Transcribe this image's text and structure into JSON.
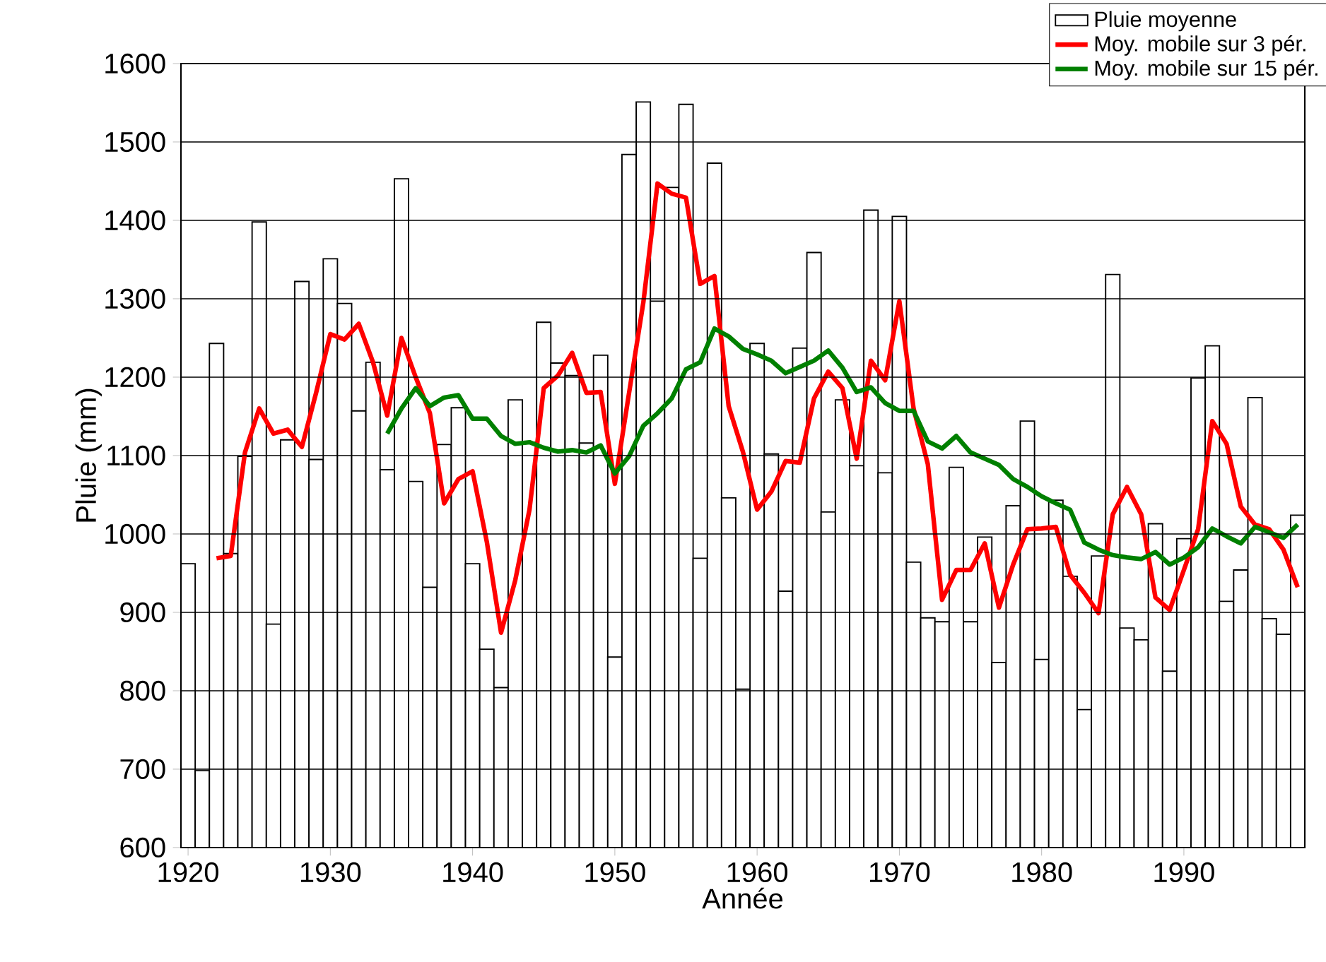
{
  "chart_data": {
    "type": "bar",
    "xlabel": "Année",
    "ylabel": "Pluie (mm)",
    "x": [
      1920,
      1921,
      1922,
      1923,
      1924,
      1925,
      1926,
      1927,
      1928,
      1929,
      1930,
      1931,
      1932,
      1933,
      1934,
      1935,
      1936,
      1937,
      1938,
      1939,
      1940,
      1941,
      1942,
      1943,
      1944,
      1945,
      1946,
      1947,
      1948,
      1949,
      1950,
      1951,
      1952,
      1953,
      1954,
      1955,
      1956,
      1957,
      1958,
      1959,
      1960,
      1961,
      1962,
      1963,
      1964,
      1965,
      1966,
      1967,
      1968,
      1969,
      1970,
      1971,
      1972,
      1973,
      1974,
      1975,
      1976,
      1977,
      1978,
      1979,
      1980,
      1981,
      1982,
      1983,
      1984,
      1985,
      1986,
      1987,
      1988,
      1989,
      1990,
      1991,
      1992,
      1993,
      1994,
      1995,
      1996,
      1997,
      1998
    ],
    "series": [
      {
        "name": "Pluie moyenne",
        "color": "#ffffff",
        "values": [
          962,
          698,
          1243,
          975,
          1099,
          1398,
          885,
          1120,
          1322,
          1095,
          1351,
          1294,
          1157,
          1219,
          1082,
          1453,
          1067,
          932,
          1114,
          1161,
          962,
          853,
          804,
          1171,
          1117,
          1270,
          1218,
          1202,
          1116,
          1228,
          843,
          1484,
          1551,
          1297,
          1442,
          1548,
          969,
          1473,
          1046,
          802,
          1243,
          1102,
          927,
          1237,
          1359,
          1028,
          1171,
          1087,
          1413,
          1078,
          1405,
          964,
          893,
          888,
          1085,
          888,
          996,
          836,
          1036,
          1144,
          840,
          1043,
          946,
          776,
          972,
          1331,
          880,
          865,
          1013,
          825,
          994,
          1199,
          1240,
          914,
          954,
          1174,
          892,
          872,
          1024
        ]
      },
      {
        "name": "Moy. mobile sur 3 pér.",
        "type": "line",
        "color": "#ff0000",
        "values": [
          null,
          null,
          969,
          972,
          1104,
          1160,
          1128,
          1133,
          1111,
          1180,
          1255,
          1248,
          1268,
          1219,
          1151,
          1250,
          1200,
          1154,
          1039,
          1070,
          1080,
          990,
          874,
          941,
          1031,
          1186,
          1202,
          1231,
          1180,
          1181,
          1064,
          1180,
          1295,
          1447,
          1434,
          1429,
          1319,
          1329,
          1163,
          1105,
          1031,
          1054,
          1093,
          1091,
          1173,
          1207,
          1186,
          1096,
          1221,
          1196,
          1297,
          1160,
          1089,
          916,
          954,
          954,
          988,
          906,
          961,
          1006,
          1007,
          1009,
          948,
          925,
          899,
          1025,
          1060,
          1025,
          919,
          903,
          954,
          1006,
          1144,
          1115,
          1035,
          1012,
          1006,
          980,
          932
        ]
      },
      {
        "name": "Moy. mobile sur 15 pér.",
        "type": "line",
        "color": "#008000",
        "values": [
          null,
          null,
          null,
          null,
          null,
          null,
          null,
          null,
          null,
          null,
          null,
          null,
          null,
          null,
          1128,
          1160,
          1186,
          1163,
          1174,
          1177,
          1147,
          1147,
          1125,
          1115,
          1117,
          1110,
          1105,
          1107,
          1104,
          1113,
          1077,
          1099,
          1138,
          1154,
          1173,
          1210,
          1219,
          1262,
          1252,
          1236,
          1229,
          1221,
          1205,
          1213,
          1221,
          1234,
          1212,
          1181,
          1187,
          1167,
          1157,
          1157,
          1118,
          1109,
          1125,
          1104,
          1096,
          1088,
          1070,
          1060,
          1048,
          1039,
          1031,
          989,
          980,
          973,
          970,
          968,
          977,
          961,
          970,
          983,
          1007,
          997,
          988,
          1009,
          1002,
          995,
          1012
        ]
      }
    ],
    "xlim": [
      1919.5,
      1998.5
    ],
    "xticks": [
      1920,
      1930,
      1940,
      1950,
      1960,
      1970,
      1980,
      1990
    ],
    "ylim": [
      600,
      1600
    ],
    "yticks": [
      600,
      700,
      800,
      900,
      1000,
      1100,
      1200,
      1300,
      1400,
      1500,
      1600
    ],
    "grid": "y",
    "legend": "top right"
  }
}
